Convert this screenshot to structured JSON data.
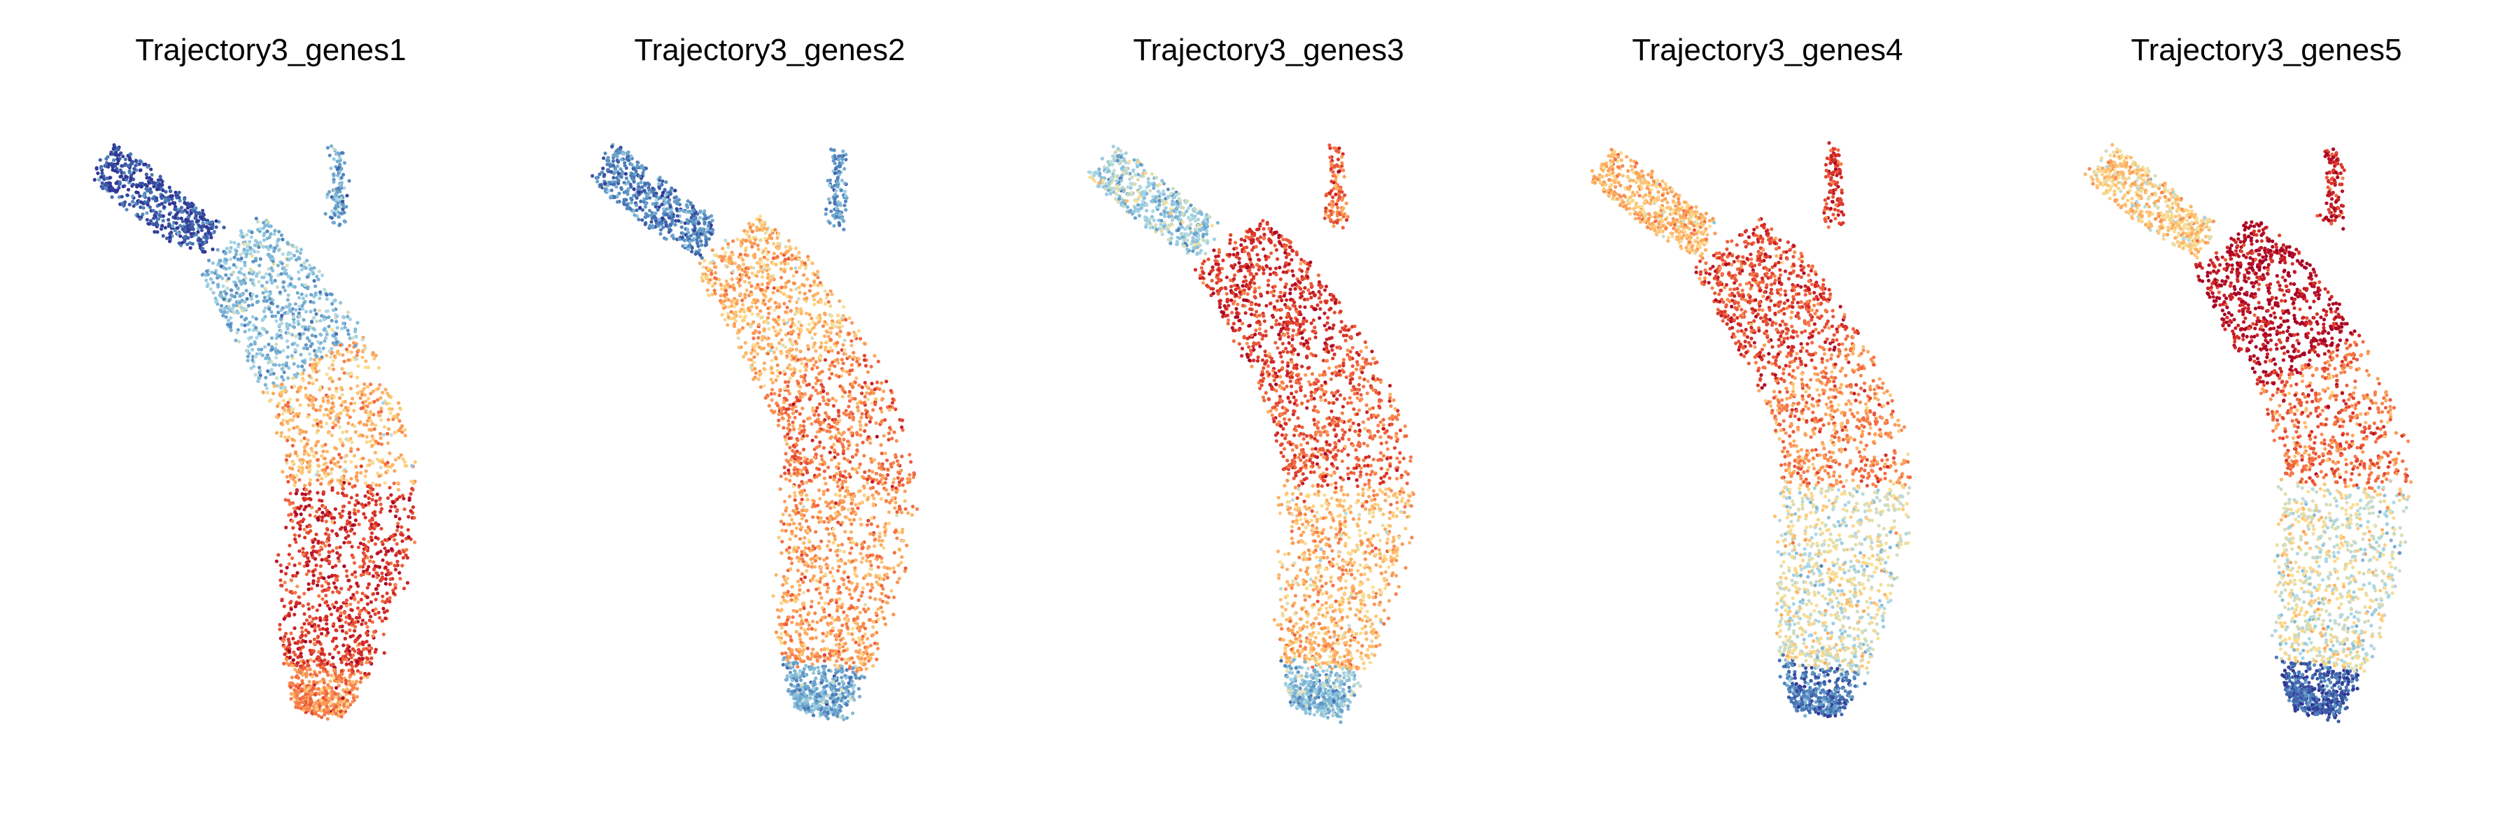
{
  "chart_data": [
    {
      "type": "scatter",
      "title": "Trajectory3_genes1",
      "axes_visible": false,
      "grid": false,
      "legend": "none",
      "color_scale": "RdYlBu_r",
      "trend": "low expression (blue) at upper-left branch and top stalk, high expression (red) in lower-middle/bottom region",
      "regions": [
        {
          "region": "upper-left branch",
          "value": 0.05
        },
        {
          "region": "top stalk",
          "value": 0.25
        },
        {
          "region": "upper body",
          "value": 0.3
        },
        {
          "region": "middle body",
          "value": 0.6
        },
        {
          "region": "lower body",
          "value": 0.85
        },
        {
          "region": "bottom tip",
          "value": 0.7
        }
      ]
    },
    {
      "type": "scatter",
      "title": "Trajectory3_genes2",
      "axes_visible": false,
      "grid": false,
      "legend": "none",
      "color_scale": "RdYlBu_r",
      "trend": "blue at upper-left branch and bottom tip, orange/red through the central body",
      "regions": [
        {
          "region": "upper-left branch",
          "value": 0.15
        },
        {
          "region": "top stalk",
          "value": 0.2
        },
        {
          "region": "upper body",
          "value": 0.6
        },
        {
          "region": "middle body",
          "value": 0.72
        },
        {
          "region": "lower body",
          "value": 0.65
        },
        {
          "region": "bottom tip",
          "value": 0.25
        }
      ]
    },
    {
      "type": "scatter",
      "title": "Trajectory3_genes3",
      "axes_visible": false,
      "grid": false,
      "legend": "none",
      "color_scale": "RdYlBu_r",
      "trend": "light at upper-left branch, red in upper/middle body, light blue at bottom tip",
      "regions": [
        {
          "region": "upper-left branch",
          "value": 0.35
        },
        {
          "region": "top stalk",
          "value": 0.75
        },
        {
          "region": "upper body",
          "value": 0.85
        },
        {
          "region": "middle body",
          "value": 0.78
        },
        {
          "region": "lower body",
          "value": 0.6
        },
        {
          "region": "bottom tip",
          "value": 0.3
        }
      ]
    },
    {
      "type": "scatter",
      "title": "Trajectory3_genes4",
      "axes_visible": false,
      "grid": false,
      "legend": "none",
      "color_scale": "RdYlBu_r",
      "trend": "orange at upper-left branch, red in upper body, fading to blue at bottom",
      "regions": [
        {
          "region": "upper-left branch",
          "value": 0.6
        },
        {
          "region": "top stalk",
          "value": 0.85
        },
        {
          "region": "upper body",
          "value": 0.82
        },
        {
          "region": "middle body",
          "value": 0.7
        },
        {
          "region": "lower body",
          "value": 0.45
        },
        {
          "region": "bottom tip",
          "value": 0.15
        }
      ]
    },
    {
      "type": "scatter",
      "title": "Trajectory3_genes5",
      "axes_visible": false,
      "grid": false,
      "legend": "none",
      "color_scale": "RdYlBu_r",
      "trend": "dark red in upper body, gradient to blue at bottom tip",
      "regions": [
        {
          "region": "upper-left branch",
          "value": 0.55
        },
        {
          "region": "top stalk",
          "value": 0.9
        },
        {
          "region": "upper body",
          "value": 0.95
        },
        {
          "region": "middle body",
          "value": 0.75
        },
        {
          "region": "lower body",
          "value": 0.45
        },
        {
          "region": "bottom tip",
          "value": 0.08
        }
      ]
    }
  ]
}
